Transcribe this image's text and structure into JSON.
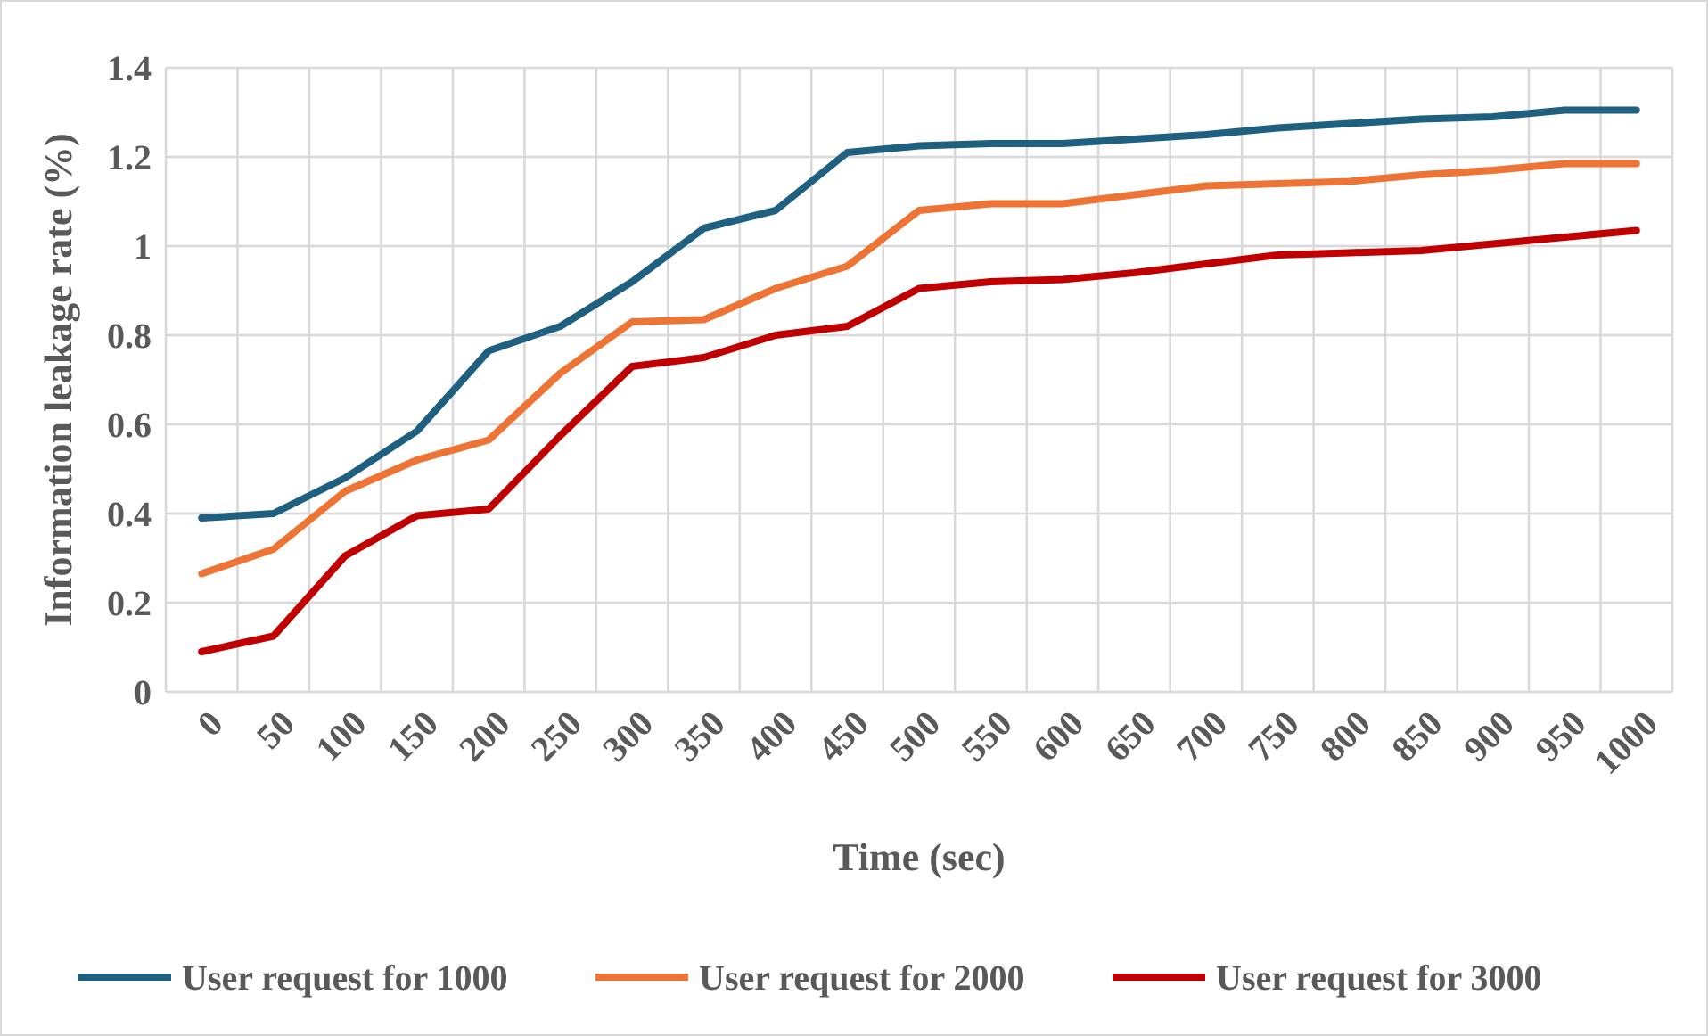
{
  "chart_data": {
    "type": "line",
    "xlabel": "Time (sec)",
    "ylabel": "Information leakage rate (%)",
    "categories": [
      "0",
      "50",
      "100",
      "150",
      "200",
      "250",
      "300",
      "350",
      "400",
      "450",
      "500",
      "550",
      "600",
      "650",
      "700",
      "750",
      "800",
      "850",
      "900",
      "950",
      "1000"
    ],
    "series": [
      {
        "name": "User request for 1000",
        "color": "#1f5f80",
        "values": [
          0.39,
          0.4,
          0.48,
          0.585,
          0.765,
          0.82,
          0.92,
          1.04,
          1.08,
          1.21,
          1.225,
          1.23,
          1.23,
          1.24,
          1.25,
          1.265,
          1.275,
          1.285,
          1.29,
          1.305,
          1.305
        ]
      },
      {
        "name": "User request for 2000",
        "color": "#ed7434",
        "values": [
          0.265,
          0.32,
          0.45,
          0.52,
          0.565,
          0.715,
          0.83,
          0.835,
          0.905,
          0.955,
          1.08,
          1.095,
          1.095,
          1.115,
          1.135,
          1.14,
          1.145,
          1.16,
          1.17,
          1.185,
          1.185
        ]
      },
      {
        "name": "User request for 3000",
        "color": "#c00000",
        "values": [
          0.09,
          0.125,
          0.305,
          0.395,
          0.41,
          0.575,
          0.73,
          0.75,
          0.8,
          0.82,
          0.905,
          0.92,
          0.925,
          0.94,
          0.96,
          0.98,
          0.985,
          0.99,
          1.005,
          1.02,
          1.035
        ]
      }
    ],
    "ylim": [
      0,
      1.4
    ],
    "yticks": [
      0,
      0.2,
      0.4,
      0.6,
      0.8,
      1,
      1.2,
      1.4
    ],
    "grid": true,
    "legend": "bottom",
    "marker": "none",
    "line_style": "solid"
  }
}
